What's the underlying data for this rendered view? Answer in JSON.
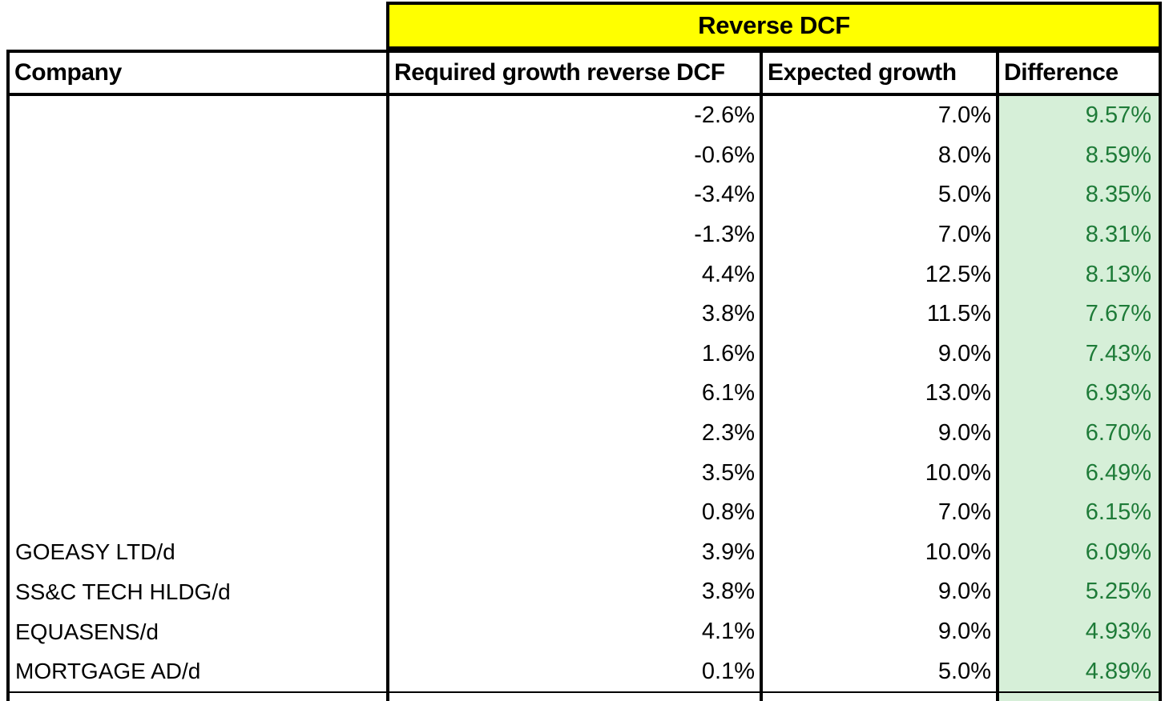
{
  "banner": {
    "title": "Reverse DCF"
  },
  "table": {
    "columns": [
      "Company",
      "Required growth reverse DCF",
      "Expected growth",
      "Difference"
    ],
    "rows": [
      {
        "company": "",
        "required": "-2.6%",
        "expected": "7.0%",
        "difference": "9.57%"
      },
      {
        "company": "",
        "required": "-0.6%",
        "expected": "8.0%",
        "difference": "8.59%"
      },
      {
        "company": "",
        "required": "-3.4%",
        "expected": "5.0%",
        "difference": "8.35%"
      },
      {
        "company": "",
        "required": "-1.3%",
        "expected": "7.0%",
        "difference": "8.31%"
      },
      {
        "company": "",
        "required": "4.4%",
        "expected": "12.5%",
        "difference": "8.13%"
      },
      {
        "company": "",
        "required": "3.8%",
        "expected": "11.5%",
        "difference": "7.67%"
      },
      {
        "company": "",
        "required": "1.6%",
        "expected": "9.0%",
        "difference": "7.43%"
      },
      {
        "company": "",
        "required": "6.1%",
        "expected": "13.0%",
        "difference": "6.93%"
      },
      {
        "company": "",
        "required": "2.3%",
        "expected": "9.0%",
        "difference": "6.70%"
      },
      {
        "company": "",
        "required": "3.5%",
        "expected": "10.0%",
        "difference": "6.49%"
      },
      {
        "company": "",
        "required": "0.8%",
        "expected": "7.0%",
        "difference": "6.15%"
      },
      {
        "company": "GOEASY LTD/d",
        "required": "3.9%",
        "expected": "10.0%",
        "difference": "6.09%"
      },
      {
        "company": "SS&C TECH HLDG/d",
        "required": "3.8%",
        "expected": "9.0%",
        "difference": "5.25%"
      },
      {
        "company": "EQUASENS/d",
        "required": "4.1%",
        "expected": "9.0%",
        "difference": "4.93%"
      },
      {
        "company": "MORTGAGE AD/d",
        "required": "0.1%",
        "expected": "5.0%",
        "difference": "4.89%"
      }
    ]
  },
  "colors": {
    "banner_bg": "#FFFF00",
    "difference_bg": "#D6EFD8",
    "difference_text": "#1E7B38",
    "border": "#000000",
    "text": "#000000",
    "cell_bg": "#FFFFFF"
  }
}
